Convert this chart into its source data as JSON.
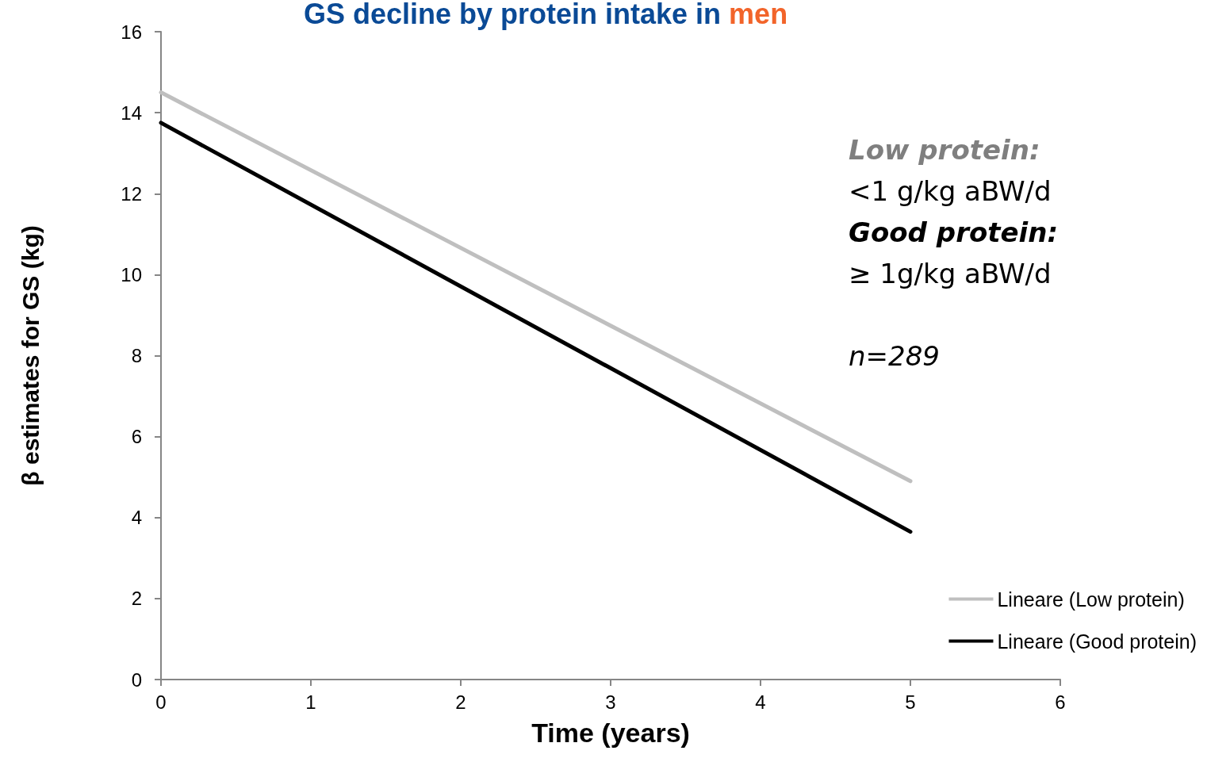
{
  "chart_data": {
    "type": "line",
    "title": "GS decline by protein intake in men",
    "xlabel": "Time (years)",
    "ylabel": "β estimates for GS (kg)",
    "x": [
      0,
      5
    ],
    "series": [
      {
        "name": "Lineare (Low protein)",
        "color": "#bfbfbf",
        "values": [
          14.5,
          4.9
        ]
      },
      {
        "name": "Lineare (Good protein)",
        "color": "#000000",
        "values": [
          13.75,
          3.65
        ]
      }
    ],
    "xlim": [
      0,
      6
    ],
    "xticks": [
      0,
      1,
      2,
      3,
      4,
      5,
      6
    ],
    "ylim": [
      0,
      16
    ],
    "yticks": [
      0,
      2,
      4,
      6,
      8,
      10,
      12,
      14,
      16
    ],
    "grid": false,
    "legend": "bottom right",
    "marker": "none",
    "line_style": "solid",
    "annotations": [
      "Low protein:",
      "<1 g/kg aBW/d",
      "Good protein:",
      "≥ 1g/kg aBW/d",
      "n=289"
    ]
  }
}
